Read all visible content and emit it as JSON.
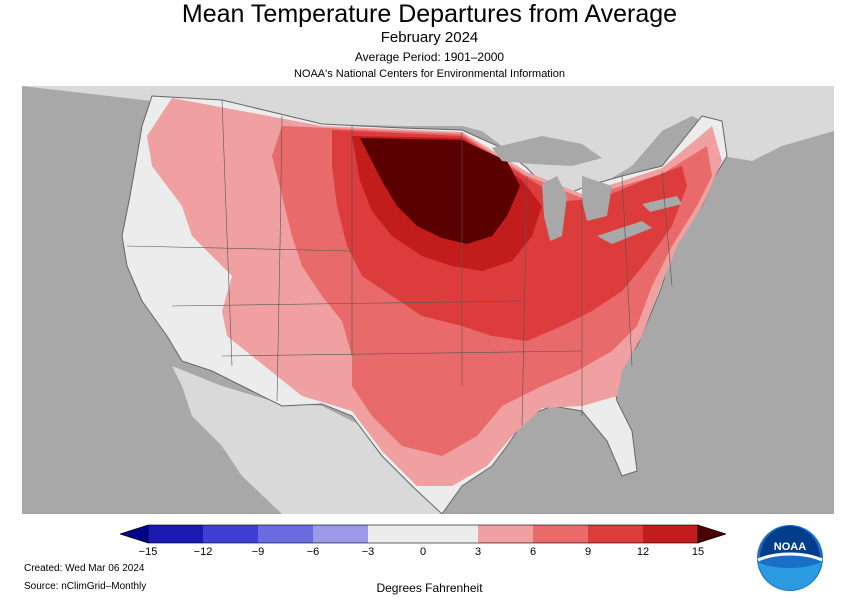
{
  "header": {
    "title": "Mean Temperature Departures from Average",
    "subtitle": "February 2024",
    "average_period": "Average Period: 1901–2000",
    "source_org": "NOAA's National Centers for Environmental Information"
  },
  "colorbar": {
    "ticks": [
      "−15",
      "−12",
      "−9",
      "−6",
      "−3",
      "0",
      "3",
      "6",
      "9",
      "12",
      "15"
    ],
    "unit_label": "Degrees Fahrenheit",
    "colors": [
      "#1a1ab0",
      "#3f3fd4",
      "#6b6be0",
      "#9a9ae6",
      "#ececec",
      "#ececec",
      "#f0a0a0",
      "#e86a6a",
      "#dc3c3c",
      "#c21c1c",
      "#5a0000"
    ]
  },
  "footer": {
    "created": "Created: Wed Mar 06 2024",
    "source": "Source: nClimGrid–Monthly"
  },
  "logo": {
    "text": "NOAA"
  },
  "colors": {
    "land_outside": "#d9d9d9",
    "water": "#a8a8a8",
    "near_normal": "#ececec",
    "warm_3_6": "#f0a0a0",
    "warm_6_9": "#e86a6a",
    "warm_9_12": "#dc3c3c",
    "warm_12_15": "#c21c1c",
    "warm_15_plus": "#5a0000"
  }
}
